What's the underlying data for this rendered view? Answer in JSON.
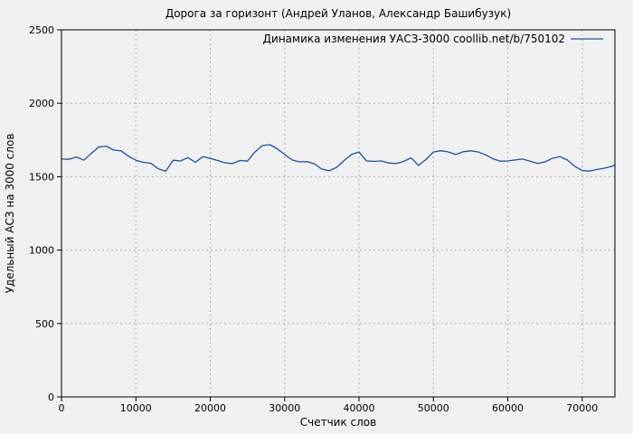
{
  "title": "Дорога за горизонт (Андрей Уланов, Александр Башибузук)",
  "legend": {
    "label": "Динамика изменения УАСЗ-3000 coollib.net/b/750102"
  },
  "axes": {
    "xlabel": "Счетчик слов",
    "ylabel": "Удельный АСЗ на 3000 слов"
  },
  "colors": {
    "line": "#1e4fa6",
    "background": "#f1f1f1",
    "grid": "#b0b0b0",
    "border": "#000000",
    "text": "#000000"
  },
  "chart_data": {
    "type": "line",
    "title": "Дорога за горизонт (Андрей Уланов, Александр Башибузук)",
    "xlabel": "Счетчик слов",
    "ylabel": "Удельный АСЗ на 3000 слов",
    "xlim": [
      0,
      74400
    ],
    "ylim": [
      0,
      2500
    ],
    "xticks": [
      0,
      10000,
      20000,
      30000,
      40000,
      50000,
      60000,
      70000
    ],
    "yticks": [
      0,
      500,
      1000,
      1500,
      2000,
      2500
    ],
    "grid": true,
    "legend_position": "top-right",
    "series": [
      {
        "name": "Динамика изменения УАСЗ-3000 coollib.net/b/750102",
        "color": "#1e4fa6",
        "x": [
          0,
          1000,
          2000,
          3000,
          4000,
          5000,
          6000,
          7000,
          8000,
          9000,
          10000,
          11000,
          12000,
          13000,
          14000,
          15000,
          16000,
          17000,
          18000,
          19000,
          20000,
          21000,
          22000,
          23000,
          24000,
          25000,
          26000,
          27000,
          28000,
          29000,
          30000,
          31000,
          32000,
          33000,
          34000,
          35000,
          36000,
          37000,
          38000,
          39000,
          40000,
          41000,
          42000,
          43000,
          44000,
          45000,
          46000,
          47000,
          48000,
          49000,
          50000,
          51000,
          52000,
          53000,
          54000,
          55000,
          56000,
          57000,
          58000,
          59000,
          60000,
          61000,
          62000,
          63000,
          64000,
          65000,
          66000,
          67000,
          68000,
          69000,
          70000,
          71000,
          72000,
          73000,
          74000,
          74300
        ],
        "y": [
          1620,
          1618,
          1634,
          1612,
          1658,
          1702,
          1708,
          1681,
          1676,
          1640,
          1612,
          1598,
          1592,
          1554,
          1537,
          1612,
          1607,
          1630,
          1598,
          1636,
          1624,
          1610,
          1594,
          1589,
          1610,
          1606,
          1668,
          1712,
          1718,
          1690,
          1651,
          1614,
          1601,
          1603,
          1588,
          1552,
          1540,
          1564,
          1610,
          1652,
          1668,
          1608,
          1604,
          1607,
          1593,
          1589,
          1604,
          1628,
          1577,
          1617,
          1668,
          1677,
          1669,
          1651,
          1670,
          1676,
          1669,
          1649,
          1622,
          1605,
          1607,
          1614,
          1620,
          1605,
          1590,
          1601,
          1625,
          1637,
          1613,
          1571,
          1542,
          1538,
          1549,
          1558,
          1571,
          1578
        ]
      }
    ]
  }
}
